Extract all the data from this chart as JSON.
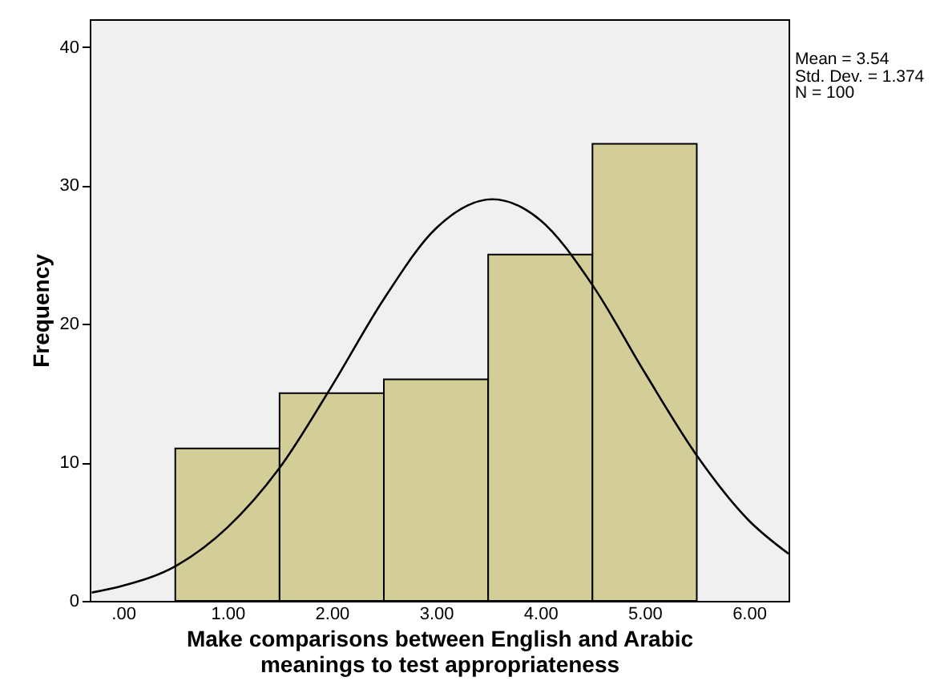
{
  "chart_data": {
    "type": "histogram",
    "xlabel": "Make comparisons between English and Arabic meanings to test appropriateness",
    "ylabel": "Frequency",
    "annotations": [
      "Mean = 3.54",
      "Std. Dev. = 1.374",
      "N = 100"
    ],
    "bins": [
      0.5,
      1.5,
      2.5,
      3.5,
      4.5,
      5.5
    ],
    "values": [
      11,
      15,
      16,
      25,
      33
    ],
    "color": "#d3ce97",
    "series": [
      {
        "type": "line",
        "color": "#000000",
        "x": [
          -0.3,
          0,
          0.5,
          1,
          1.5,
          2,
          2.5,
          3,
          3.54,
          4,
          4.5,
          5,
          5.5,
          6,
          6.38
        ],
        "values": [
          0.6,
          1.1,
          2.5,
          5.3,
          9.6,
          15.5,
          21.8,
          26.9,
          29.0,
          27.5,
          22.8,
          16.5,
          10.5,
          5.8,
          3.4
        ]
      }
    ],
    "xlim": [
      -0.32,
      6.38
    ],
    "xticks": [
      {
        "value": 0,
        "label": ".00"
      },
      {
        "value": 1,
        "label": "1.00"
      },
      {
        "value": 2,
        "label": "2.00"
      },
      {
        "value": 3,
        "label": "3.00"
      },
      {
        "value": 4,
        "label": "4.00"
      },
      {
        "value": 5,
        "label": "5.00"
      },
      {
        "value": 6,
        "label": "6.00"
      }
    ],
    "ylim": [
      0,
      42
    ],
    "yticks": [
      0,
      10,
      20,
      30,
      40
    ],
    "grid": false
  }
}
